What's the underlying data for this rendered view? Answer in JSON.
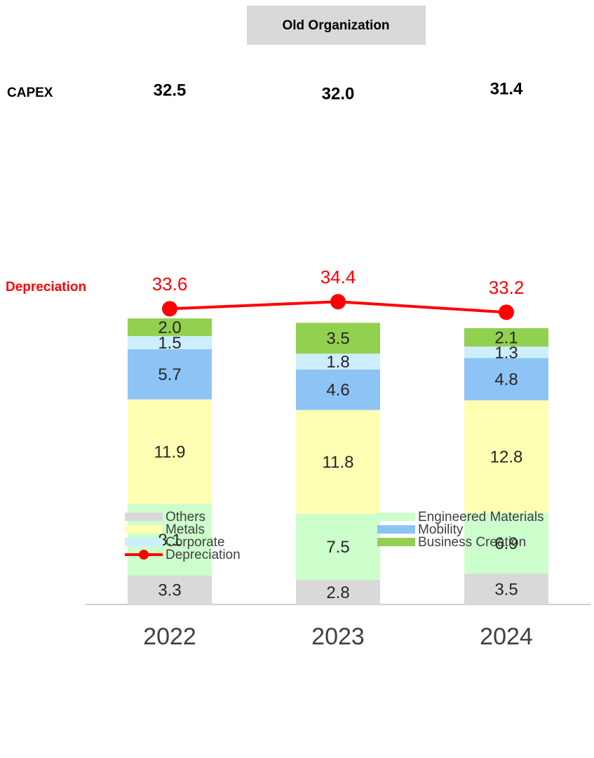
{
  "chart_data": {
    "type": "bar",
    "stacked": true,
    "title": "Old Organization",
    "categories": [
      "2022",
      "2023",
      "2024"
    ],
    "ylim": [
      0,
      40
    ],
    "capex": {
      "label": "CAPEX",
      "values": [
        32.5,
        32.0,
        31.4
      ],
      "value_labels": [
        "32.5",
        "32.0",
        "31.4"
      ]
    },
    "series": [
      {
        "name": "Others",
        "color": "#d9d9d9",
        "values": [
          3.3,
          2.8,
          3.5
        ],
        "value_labels": [
          "3.3",
          "2.8",
          "3.5"
        ]
      },
      {
        "name": "Engineered Materials",
        "color": "#ccffcc",
        "values": [
          8.1,
          7.5,
          6.9
        ],
        "value_labels": [
          "8.1",
          "7.5",
          "6.9"
        ]
      },
      {
        "name": "Metals",
        "color": "#ffffb3",
        "values": [
          11.9,
          11.8,
          12.8
        ],
        "value_labels": [
          "11.9",
          "11.8",
          "12.8"
        ]
      },
      {
        "name": "Mobility",
        "color": "#8ec3f5",
        "values": [
          5.7,
          4.6,
          4.8
        ],
        "value_labels": [
          "5.7",
          "4.6",
          "4.8"
        ]
      },
      {
        "name": "Corporate",
        "color": "#cdeefc",
        "values": [
          1.5,
          1.8,
          1.3
        ],
        "value_labels": [
          "1.5",
          "1.8",
          "1.3"
        ]
      },
      {
        "name": "Business Creation",
        "color": "#92d050",
        "values": [
          2.0,
          3.5,
          2.1
        ],
        "value_labels": [
          "2.0",
          "3.5",
          "2.1"
        ]
      }
    ],
    "line": {
      "name": "Depreciation",
      "color": "#ff0000",
      "values": [
        33.6,
        34.4,
        33.2
      ],
      "value_labels": [
        "33.6",
        "34.4",
        "33.2"
      ]
    }
  }
}
